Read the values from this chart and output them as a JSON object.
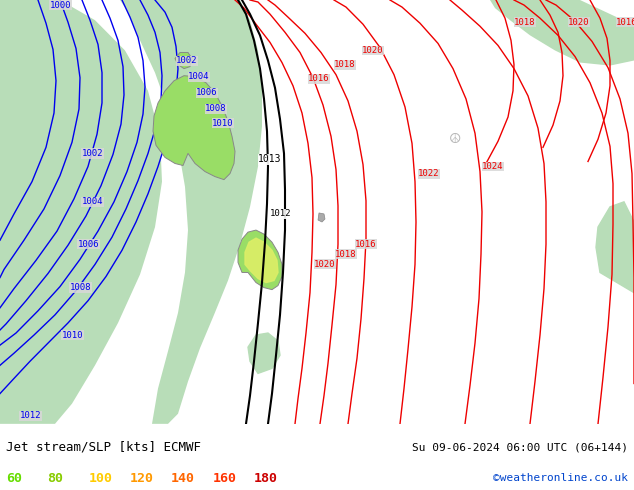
{
  "title_left": "Jet stream/SLP [kts] ECMWF",
  "title_right": "Su 09-06-2024 06:00 UTC (06+144)",
  "credit": "©weatheronline.co.uk",
  "legend_values": [
    60,
    80,
    100,
    120,
    140,
    160,
    180
  ],
  "legend_colors": [
    "#66dd00",
    "#88cc00",
    "#ffcc00",
    "#ff9900",
    "#ff6600",
    "#ff3300",
    "#cc0000"
  ],
  "bg_color": "#d8d8d8",
  "green_fill_color": "#b8ddb8",
  "contour_blue_color": "#0000ee",
  "contour_red_color": "#ee0000",
  "contour_black_color": "#000000",
  "bottom_bar_color": "#ffffff",
  "credit_color": "#0044cc",
  "label_bg": "#d8d8d8",
  "nz_green": "#99dd66",
  "nz_yellow_green": "#ddee66",
  "nz_outline": "#888888"
}
